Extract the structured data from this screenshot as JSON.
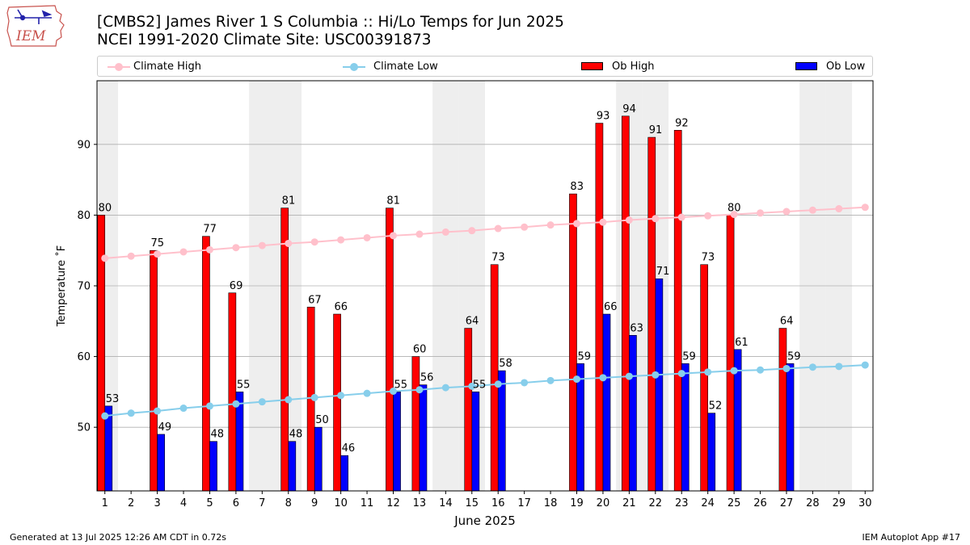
{
  "logo": {
    "text": "IEM"
  },
  "header": {
    "title_line1": "[CMBS2] James River 1 S Columbia :: Hi/Lo Temps for Jun 2025",
    "title_line2": "NCEI 1991-2020 Climate Site: USC00391873"
  },
  "legend": {
    "climate_high": "Climate High",
    "climate_low": "Climate Low",
    "ob_high": "Ob High",
    "ob_low": "Ob Low"
  },
  "footer": {
    "left": "Generated at 13 Jul 2025 12:26 AM CDT in 0.72s",
    "right": "IEM Autoplot App #17"
  },
  "chart_data": {
    "type": "bar",
    "xlabel": "June 2025",
    "ylabel": "Temperature ˚F",
    "ylim": [
      41,
      99
    ],
    "yticks": [
      50,
      60,
      70,
      80,
      90
    ],
    "grid": "horizontal",
    "legend_placement": "top",
    "colors": {
      "ob_high": "#ff0000",
      "ob_low": "#0000ff",
      "climate_high": "#ffc0cb",
      "climate_low": "#87ceeb",
      "weekend_shade": "#eeeeee",
      "grid": "#b0b0b0"
    },
    "weekend_days": [
      1,
      7,
      8,
      14,
      15,
      21,
      22,
      28,
      29
    ],
    "categories": [
      1,
      2,
      3,
      4,
      5,
      6,
      7,
      8,
      9,
      10,
      11,
      12,
      13,
      14,
      15,
      16,
      17,
      18,
      19,
      20,
      21,
      22,
      23,
      24,
      25,
      26,
      27,
      28,
      29,
      30
    ],
    "series": [
      {
        "name": "Ob High",
        "kind": "bar",
        "values": [
          80,
          null,
          75,
          null,
          77,
          69,
          null,
          81,
          67,
          66,
          null,
          81,
          60,
          null,
          64,
          73,
          null,
          null,
          83,
          93,
          94,
          91,
          92,
          73,
          80,
          null,
          64,
          null,
          null,
          null
        ]
      },
      {
        "name": "Ob Low",
        "kind": "bar",
        "values": [
          53,
          null,
          49,
          null,
          48,
          55,
          null,
          48,
          50,
          46,
          null,
          55,
          56,
          null,
          55,
          58,
          null,
          null,
          59,
          66,
          63,
          71,
          59,
          52,
          61,
          null,
          59,
          null,
          null,
          null
        ]
      },
      {
        "name": "Climate High",
        "kind": "line",
        "values": [
          73.9,
          74.2,
          74.5,
          74.8,
          75.1,
          75.4,
          75.7,
          76.0,
          76.2,
          76.5,
          76.8,
          77.1,
          77.3,
          77.6,
          77.8,
          78.1,
          78.3,
          78.6,
          78.8,
          79.0,
          79.3,
          79.5,
          79.7,
          79.9,
          80.1,
          80.3,
          80.5,
          80.7,
          80.9,
          81.1
        ]
      },
      {
        "name": "Climate Low",
        "kind": "line",
        "values": [
          51.6,
          52.0,
          52.3,
          52.7,
          53.0,
          53.3,
          53.6,
          53.9,
          54.2,
          54.5,
          54.8,
          55.1,
          55.3,
          55.6,
          55.8,
          56.1,
          56.3,
          56.6,
          56.8,
          57.0,
          57.2,
          57.4,
          57.6,
          57.8,
          58.0,
          58.1,
          58.3,
          58.5,
          58.6,
          58.8
        ]
      }
    ]
  }
}
